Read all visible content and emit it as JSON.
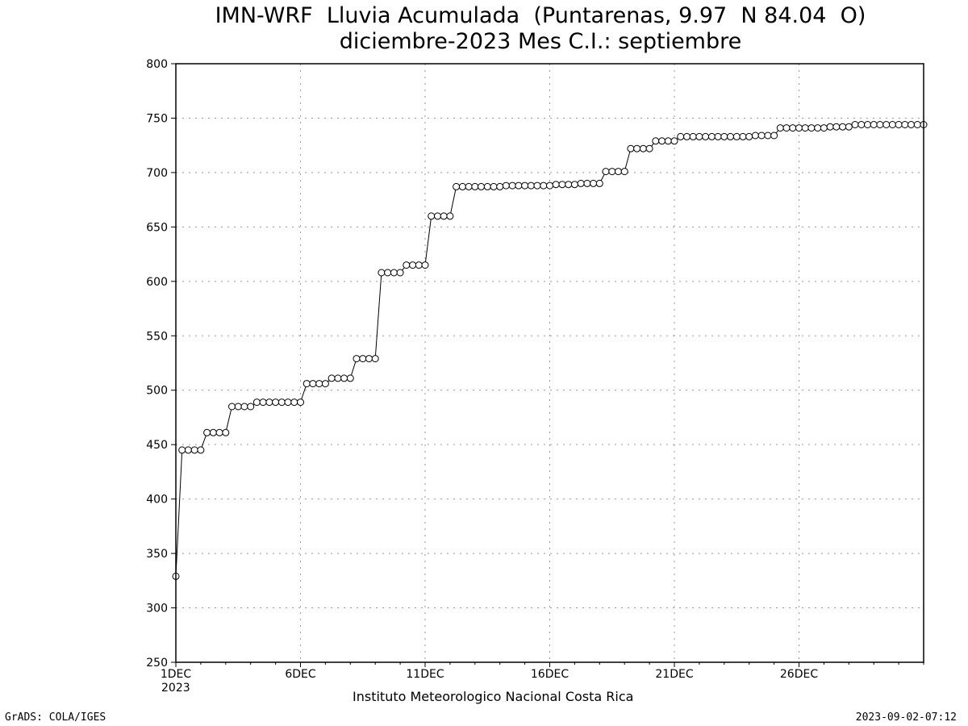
{
  "title_line1": "IMN-WRF  Lluvia Acumulada  (Puntarenas, 9.97  N 84.04  O)",
  "title_line2": "diciembre-2023 Mes C.I.: septiembre",
  "footer_left": "GrADS: COLA/IGES",
  "footer_right": "2023-09-02-07:12",
  "institution": "Instituto Meteorologico Nacional Costa Rica",
  "year_label": "2023",
  "chart_data": {
    "type": "line",
    "title": "IMN-WRF  Lluvia Acumulada  (Puntarenas, 9.97  N 84.04  O)",
    "xlabel": "",
    "ylabel": "",
    "ylim": [
      250,
      800
    ],
    "yticks": [
      250,
      300,
      350,
      400,
      450,
      500,
      550,
      600,
      650,
      700,
      750,
      800
    ],
    "xlim": [
      1,
      31
    ],
    "xticks": [
      1,
      6,
      11,
      16,
      21,
      26
    ],
    "xtick_labels": [
      "1DEC",
      "6DEC",
      "11DEC",
      "16DEC",
      "21DEC",
      "26DEC"
    ],
    "grid": true,
    "marker": "open-circle",
    "step_hours": 6,
    "series": [
      {
        "values": [
          329,
          445,
          445,
          445,
          445,
          461,
          461,
          461,
          461,
          485,
          485,
          485,
          485,
          489,
          489,
          489,
          489,
          489,
          489,
          489,
          489,
          506,
          506,
          506,
          506,
          511,
          511,
          511,
          511,
          529,
          529,
          529,
          529,
          608,
          608,
          608,
          608,
          615,
          615,
          615,
          615,
          660,
          660,
          660,
          660,
          687,
          687,
          687,
          687,
          687,
          687,
          687,
          687,
          688,
          688,
          688,
          688,
          688,
          688,
          688,
          688,
          689,
          689,
          689,
          689,
          690,
          690,
          690,
          690,
          701,
          701,
          701,
          701,
          722,
          722,
          722,
          722,
          729,
          729,
          729,
          729,
          733,
          733,
          733,
          733,
          733,
          733,
          733,
          733,
          733,
          733,
          733,
          733,
          734,
          734,
          734,
          734,
          741,
          741,
          741,
          741,
          741,
          741,
          741,
          741,
          742,
          742,
          742,
          742,
          744,
          744,
          744,
          744,
          744,
          744,
          744,
          744,
          744,
          744,
          744,
          744
        ]
      }
    ]
  }
}
